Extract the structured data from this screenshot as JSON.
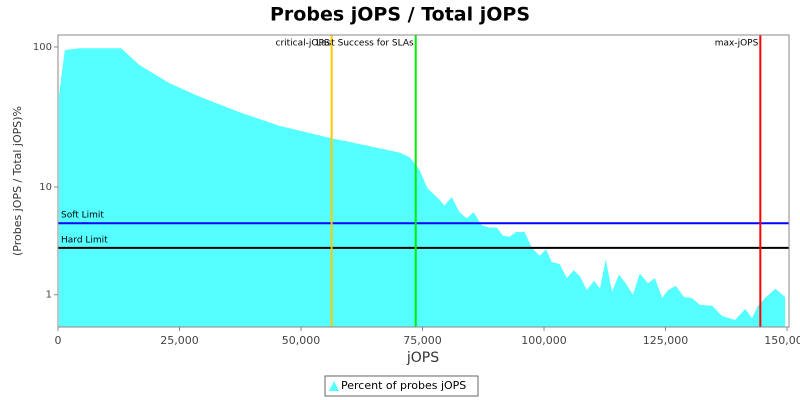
{
  "chart_data": {
    "type": "area",
    "title": "Probes jOPS / Total jOPS",
    "x_label": "jOPS",
    "y_label": "(Probes jOPS / Total jOPS)%",
    "y_scale": "log1p",
    "xlim": [
      0,
      150400
    ],
    "ylim": [
      0.2,
      121
    ],
    "xticks": [
      {
        "value": 0,
        "label": "0"
      },
      {
        "value": 25000,
        "label": "25,000"
      },
      {
        "value": 50000,
        "label": "50,000"
      },
      {
        "value": 75000,
        "label": "75,000"
      },
      {
        "value": 100000,
        "label": "100,000"
      },
      {
        "value": 125000,
        "label": "125,000"
      },
      {
        "value": 150000,
        "label": "150,000"
      }
    ],
    "yticks": [
      1,
      10,
      100
    ],
    "series": [
      {
        "name": "Percent of probes jOPS",
        "color": "#55ffff",
        "x": [
          200,
          1400,
          4300,
          13000,
          16700,
          22900,
          29100,
          37300,
          45500,
          55800,
          64100,
          70200,
          72300,
          74400,
          76000,
          78500,
          79500,
          81000,
          82600,
          84100,
          85500,
          87200,
          88800,
          90300,
          91500,
          92900,
          94200,
          96000,
          97500,
          99100,
          100400,
          101600,
          103200,
          104700,
          106100,
          107400,
          108800,
          110300,
          111500,
          112700,
          114000,
          115400,
          116800,
          118300,
          119700,
          121400,
          122800,
          124300,
          125500,
          127100,
          128800,
          130400,
          132100,
          134600,
          136600,
          139300,
          141400,
          142800,
          144000,
          145500,
          147600,
          149600
        ],
        "values": [
          46,
          95,
          98,
          98,
          75,
          56,
          45,
          35,
          28,
          23,
          20,
          18,
          16.7,
          13.4,
          9.8,
          8.0,
          7.2,
          8.4,
          6.4,
          5.7,
          6.4,
          5.0,
          4.8,
          4.8,
          4.1,
          4.0,
          4.4,
          4.4,
          3.2,
          2.7,
          3.1,
          2.35,
          2.25,
          1.6,
          1.95,
          1.67,
          1.15,
          1.5,
          1.2,
          2.5,
          1.1,
          1.75,
          1.4,
          1.0,
          1.8,
          1.4,
          1.6,
          0.9,
          1.15,
          1.3,
          0.93,
          0.9,
          0.7,
          0.68,
          0.43,
          0.34,
          0.6,
          0.38,
          0.68,
          0.9,
          1.2,
          0.93
        ]
      }
    ],
    "vlines": [
      {
        "label": "critical-jOPS",
        "value": 56300,
        "color": "#ffc800"
      },
      {
        "label": "Last Success for SLAs",
        "value": 73600,
        "color": "#00ee00"
      },
      {
        "label": "max-jOPS",
        "value": 144500,
        "color": "#ff0000"
      }
    ],
    "hlines": [
      {
        "label": "Soft Limit",
        "value": 5.2,
        "color": "#0000ff"
      },
      {
        "label": "Hard Limit",
        "value": 3.2,
        "color": "#000000"
      }
    ]
  }
}
